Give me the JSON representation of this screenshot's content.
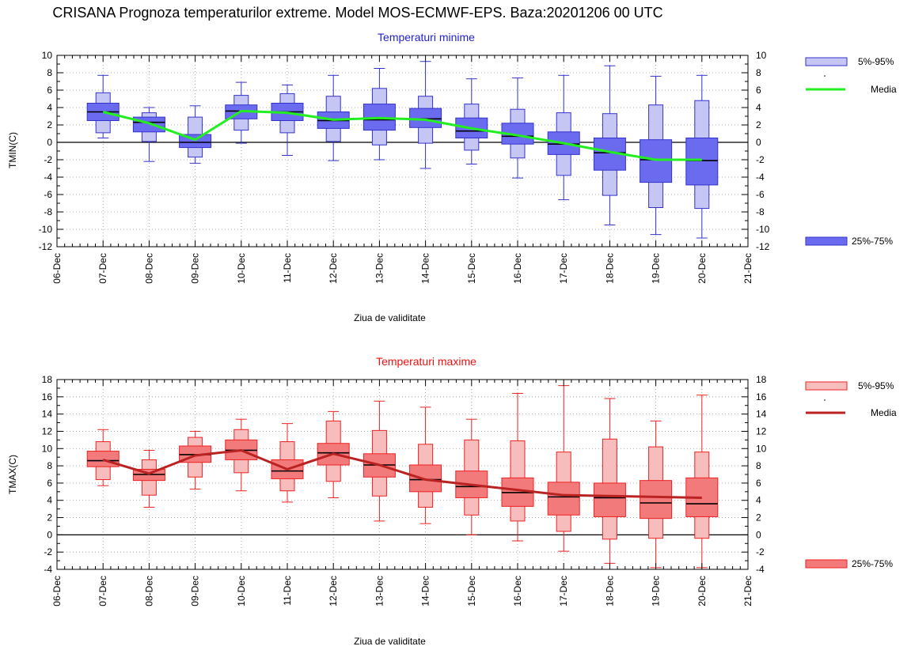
{
  "title": "CRISANA  Prognoza temperaturilor extreme.  Model MOS-ECMWF-EPS. Baza:20201206 00 UTC",
  "chart_data": [
    {
      "type": "box",
      "title": "Temperaturi minime",
      "ylabel": "TMIN(C)",
      "xlabel": "Ziua de validitate",
      "ylim": [
        -12,
        10
      ],
      "yticks": [
        -12,
        -10,
        -8,
        -6,
        -4,
        -2,
        0,
        2,
        4,
        6,
        8,
        10
      ],
      "xtick_labels": [
        "06-Dec",
        "07-Dec",
        "08-Dec",
        "09-Dec",
        "10-Dec",
        "11-Dec",
        "12-Dec",
        "13-Dec",
        "14-Dec",
        "15-Dec",
        "16-Dec",
        "17-Dec",
        "18-Dec",
        "19-Dec",
        "20-Dec",
        "21-Dec"
      ],
      "grid": true,
      "colors": {
        "light": "#c6c6f5",
        "dark": "#6b6bf0",
        "edge": "#3333cc",
        "mean": "#22ee22",
        "title": "#2222cc"
      },
      "legend": {
        "p5_95": "5%-95%",
        "mean": "Media",
        "p25_75": "25%-75%"
      },
      "boxes": [
        {
          "x": 1,
          "min": 0.5,
          "p5": 1.1,
          "p25": 2.5,
          "median": 3.5,
          "p75": 4.5,
          "p95": 5.7,
          "max": 7.7
        },
        {
          "x": 2,
          "min": -2.2,
          "p5": 0.1,
          "p25": 1.2,
          "median": 2.3,
          "p75": 2.9,
          "p95": 3.4,
          "max": 4.0
        },
        {
          "x": 3,
          "min": -2.4,
          "p5": -1.7,
          "p25": -0.6,
          "median": 0.0,
          "p75": 0.9,
          "p95": 2.9,
          "max": 4.2
        },
        {
          "x": 4,
          "min": -0.1,
          "p5": 1.4,
          "p25": 2.7,
          "median": 3.6,
          "p75": 4.3,
          "p95": 5.4,
          "max": 6.9
        },
        {
          "x": 5,
          "min": -1.5,
          "p5": 1.1,
          "p25": 2.5,
          "median": 3.5,
          "p75": 4.5,
          "p95": 5.6,
          "max": 6.6
        },
        {
          "x": 6,
          "min": -2.1,
          "p5": 0.1,
          "p25": 1.6,
          "median": 2.5,
          "p75": 3.5,
          "p95": 5.3,
          "max": 7.7
        },
        {
          "x": 7,
          "min": -2.0,
          "p5": -0.3,
          "p25": 1.4,
          "median": 2.6,
          "p75": 4.4,
          "p95": 6.2,
          "max": 8.5
        },
        {
          "x": 8,
          "min": -3.0,
          "p5": -0.1,
          "p25": 1.7,
          "median": 2.7,
          "p75": 3.9,
          "p95": 5.3,
          "max": 9.3
        },
        {
          "x": 9,
          "min": -2.5,
          "p5": -0.9,
          "p25": 0.5,
          "median": 1.3,
          "p75": 2.8,
          "p95": 4.4,
          "max": 7.3
        },
        {
          "x": 10,
          "min": -4.1,
          "p5": -1.8,
          "p25": -0.2,
          "median": 0.7,
          "p75": 2.2,
          "p95": 3.8,
          "max": 7.4
        },
        {
          "x": 11,
          "min": -6.6,
          "p5": -3.8,
          "p25": -1.4,
          "median": -0.2,
          "p75": 1.2,
          "p95": 3.4,
          "max": 7.7
        },
        {
          "x": 12,
          "min": -9.5,
          "p5": -6.1,
          "p25": -3.2,
          "median": -1.2,
          "p75": 0.5,
          "p95": 3.3,
          "max": 8.8
        },
        {
          "x": 13,
          "min": -10.6,
          "p5": -7.5,
          "p25": -4.6,
          "median": -2.0,
          "p75": 0.3,
          "p95": 4.3,
          "max": 7.6
        },
        {
          "x": 14,
          "min": -11.0,
          "p5": -7.6,
          "p25": -4.9,
          "median": -2.1,
          "p75": 0.5,
          "p95": 4.8,
          "max": 7.7
        }
      ],
      "mean": [
        3.5,
        2.2,
        0.3,
        3.6,
        3.4,
        2.6,
        2.8,
        2.6,
        1.6,
        0.8,
        -0.1,
        -1.1,
        -2.0,
        -2.0
      ]
    },
    {
      "type": "box",
      "title": "Temperaturi maxime",
      "ylabel": "TMAX(C)",
      "xlabel": "Ziua de validitate",
      "ylim": [
        -4,
        18
      ],
      "yticks": [
        -4,
        -2,
        0,
        2,
        4,
        6,
        8,
        10,
        12,
        14,
        16,
        18
      ],
      "xtick_labels": [
        "06-Dec",
        "07-Dec",
        "08-Dec",
        "09-Dec",
        "10-Dec",
        "11-Dec",
        "12-Dec",
        "13-Dec",
        "14-Dec",
        "15-Dec",
        "16-Dec",
        "17-Dec",
        "18-Dec",
        "19-Dec",
        "20-Dec",
        "21-Dec"
      ],
      "grid": true,
      "colors": {
        "light": "#f7bcbc",
        "dark": "#f27a7a",
        "edge": "#ee2222",
        "mean": "#bb2222",
        "title": "#ee1111"
      },
      "legend": {
        "p5_95": "5%-95%",
        "mean": "Media",
        "p25_75": "25%-75%"
      },
      "boxes": [
        {
          "x": 1,
          "min": 5.7,
          "p5": 6.4,
          "p25": 7.9,
          "median": 8.6,
          "p75": 9.7,
          "p95": 10.8,
          "max": 12.2
        },
        {
          "x": 2,
          "min": 3.2,
          "p5": 4.6,
          "p25": 6.3,
          "median": 7.0,
          "p75": 7.6,
          "p95": 8.7,
          "max": 9.8
        },
        {
          "x": 3,
          "min": 5.3,
          "p5": 6.7,
          "p25": 8.4,
          "median": 9.3,
          "p75": 10.3,
          "p95": 11.3,
          "max": 12.0
        },
        {
          "x": 4,
          "min": 5.1,
          "p5": 7.2,
          "p25": 8.7,
          "median": 9.8,
          "p75": 11.0,
          "p95": 12.2,
          "max": 13.4
        },
        {
          "x": 5,
          "min": 3.8,
          "p5": 5.1,
          "p25": 6.5,
          "median": 7.4,
          "p75": 8.7,
          "p95": 10.8,
          "max": 12.9
        },
        {
          "x": 6,
          "min": 4.3,
          "p5": 6.2,
          "p25": 8.1,
          "median": 9.5,
          "p75": 10.6,
          "p95": 13.2,
          "max": 14.3
        },
        {
          "x": 7,
          "min": 1.6,
          "p5": 4.5,
          "p25": 6.7,
          "median": 8.1,
          "p75": 9.4,
          "p95": 12.1,
          "max": 15.5
        },
        {
          "x": 8,
          "min": 1.3,
          "p5": 3.2,
          "p25": 5.0,
          "median": 6.4,
          "p75": 8.1,
          "p95": 10.5,
          "max": 14.8
        },
        {
          "x": 9,
          "min": 0.0,
          "p5": 2.3,
          "p25": 4.3,
          "median": 5.6,
          "p75": 7.4,
          "p95": 11.0,
          "max": 13.4
        },
        {
          "x": 10,
          "min": -0.7,
          "p5": 1.6,
          "p25": 3.3,
          "median": 4.9,
          "p75": 6.6,
          "p95": 10.9,
          "max": 16.4
        },
        {
          "x": 11,
          "min": -1.9,
          "p5": 0.4,
          "p25": 2.3,
          "median": 4.4,
          "p75": 6.1,
          "p95": 9.6,
          "max": 17.3
        },
        {
          "x": 12,
          "min": -3.3,
          "p5": -0.5,
          "p25": 2.1,
          "median": 4.3,
          "p75": 6.0,
          "p95": 11.1,
          "max": 15.8
        },
        {
          "x": 13,
          "min": -3.8,
          "p5": -0.4,
          "p25": 1.9,
          "median": 3.7,
          "p75": 6.3,
          "p95": 10.2,
          "max": 13.2
        },
        {
          "x": 14,
          "min": -3.8,
          "p5": -0.4,
          "p25": 2.1,
          "median": 3.6,
          "p75": 6.6,
          "p95": 9.6,
          "max": 16.2
        }
      ],
      "mean": [
        8.7,
        7.1,
        9.2,
        9.8,
        7.6,
        9.4,
        8.1,
        6.4,
        5.8,
        5.2,
        4.6,
        4.5,
        4.4,
        4.3
      ]
    }
  ]
}
